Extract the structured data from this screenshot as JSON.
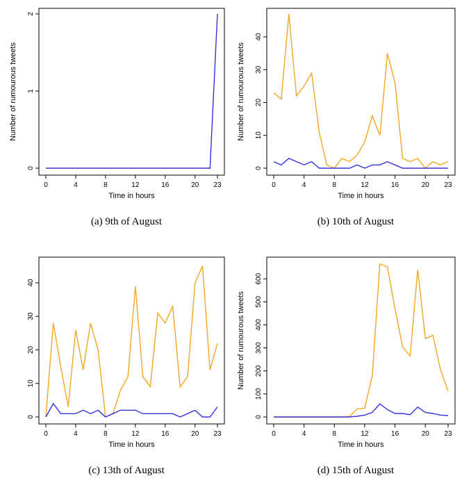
{
  "chart_data": [
    {
      "type": "line",
      "caption": "(a) 9th of August",
      "xlabel": "Time in hours",
      "ylabel": "Number of rumourous tweets",
      "xlim": [
        0,
        23
      ],
      "ylim": [
        0,
        2
      ],
      "xticks": [
        0,
        4,
        8,
        12,
        16,
        20,
        23
      ],
      "yticks": [
        0,
        1,
        2
      ],
      "x": [
        0,
        1,
        2,
        3,
        4,
        5,
        6,
        7,
        8,
        9,
        10,
        11,
        12,
        13,
        14,
        15,
        16,
        17,
        18,
        19,
        20,
        21,
        22,
        23
      ],
      "series": [
        {
          "name": "blue",
          "color": "#3333dd",
          "values": [
            0,
            0,
            0,
            0,
            0,
            0,
            0,
            0,
            0,
            0,
            0,
            0,
            0,
            0,
            0,
            0,
            0,
            0,
            0,
            0,
            0,
            0,
            0,
            2
          ]
        }
      ]
    },
    {
      "type": "line",
      "caption": "(b) 10th of August",
      "xlabel": "Time in hours",
      "ylabel": "Number of rumourous tweets",
      "xlim": [
        0,
        23
      ],
      "ylim": [
        0,
        47
      ],
      "xticks": [
        0,
        4,
        8,
        12,
        16,
        20,
        23
      ],
      "yticks": [
        0,
        10,
        20,
        30,
        40
      ],
      "x": [
        0,
        1,
        2,
        3,
        4,
        5,
        6,
        7,
        8,
        9,
        10,
        11,
        12,
        13,
        14,
        15,
        16,
        17,
        18,
        19,
        20,
        21,
        22,
        23
      ],
      "series": [
        {
          "name": "orange",
          "color": "#f5a623",
          "values": [
            23,
            21,
            47,
            22,
            25,
            29,
            11,
            1,
            0,
            3,
            2,
            4,
            8,
            16,
            10,
            35,
            26,
            3,
            2,
            3,
            0,
            2,
            1,
            2
          ]
        },
        {
          "name": "blue",
          "color": "#3333dd",
          "values": [
            2,
            1,
            3,
            2,
            1,
            2,
            0,
            0,
            0,
            0,
            0,
            1,
            0,
            1,
            1,
            2,
            1,
            0,
            0,
            0,
            0,
            0,
            0,
            0
          ]
        }
      ]
    },
    {
      "type": "line",
      "caption": "(c) 13th of August",
      "xlabel": "Time in hours",
      "ylabel": "",
      "xlim": [
        0,
        23
      ],
      "ylim": [
        0,
        46
      ],
      "xticks": [
        0,
        4,
        8,
        12,
        16,
        20,
        23
      ],
      "yticks": [
        0,
        10,
        20,
        30,
        40
      ],
      "x": [
        0,
        1,
        2,
        3,
        4,
        5,
        6,
        7,
        8,
        9,
        10,
        11,
        12,
        13,
        14,
        15,
        16,
        17,
        18,
        19,
        20,
        21,
        22,
        23
      ],
      "series": [
        {
          "name": "orange",
          "color": "#f5a623",
          "values": [
            0,
            28,
            15,
            3,
            26,
            14,
            28,
            20,
            0,
            1,
            8,
            12,
            39,
            12,
            9,
            31,
            28,
            33,
            9,
            12,
            40,
            45,
            14,
            22
          ]
        },
        {
          "name": "blue",
          "color": "#3333dd",
          "values": [
            0,
            4,
            1,
            1,
            1,
            2,
            1,
            2,
            0,
            1,
            2,
            2,
            2,
            1,
            1,
            1,
            1,
            1,
            0,
            1,
            2,
            0,
            0,
            3
          ]
        }
      ]
    },
    {
      "type": "line",
      "caption": "(d) 15th of August",
      "xlabel": "Time in hours",
      "ylabel": "Number of rumourous tweets",
      "xlim": [
        0,
        23
      ],
      "ylim": [
        0,
        670
      ],
      "xticks": [
        0,
        4,
        8,
        12,
        16,
        20,
        23
      ],
      "yticks": [
        0,
        100,
        200,
        300,
        400,
        500,
        600
      ],
      "x": [
        0,
        1,
        2,
        3,
        4,
        5,
        6,
        7,
        8,
        9,
        10,
        11,
        12,
        13,
        14,
        15,
        16,
        17,
        18,
        19,
        20,
        21,
        22,
        23
      ],
      "series": [
        {
          "name": "orange",
          "color": "#f5a623",
          "values": [
            0,
            0,
            0,
            0,
            0,
            0,
            0,
            0,
            0,
            0,
            2,
            35,
            38,
            180,
            665,
            652,
            470,
            305,
            265,
            640,
            340,
            355,
            205,
            113
          ]
        },
        {
          "name": "blue",
          "color": "#3333dd",
          "values": [
            0,
            0,
            0,
            0,
            0,
            0,
            0,
            0,
            0,
            0,
            0,
            3,
            8,
            20,
            57,
            32,
            15,
            15,
            10,
            43,
            20,
            15,
            8,
            6
          ]
        }
      ]
    }
  ]
}
